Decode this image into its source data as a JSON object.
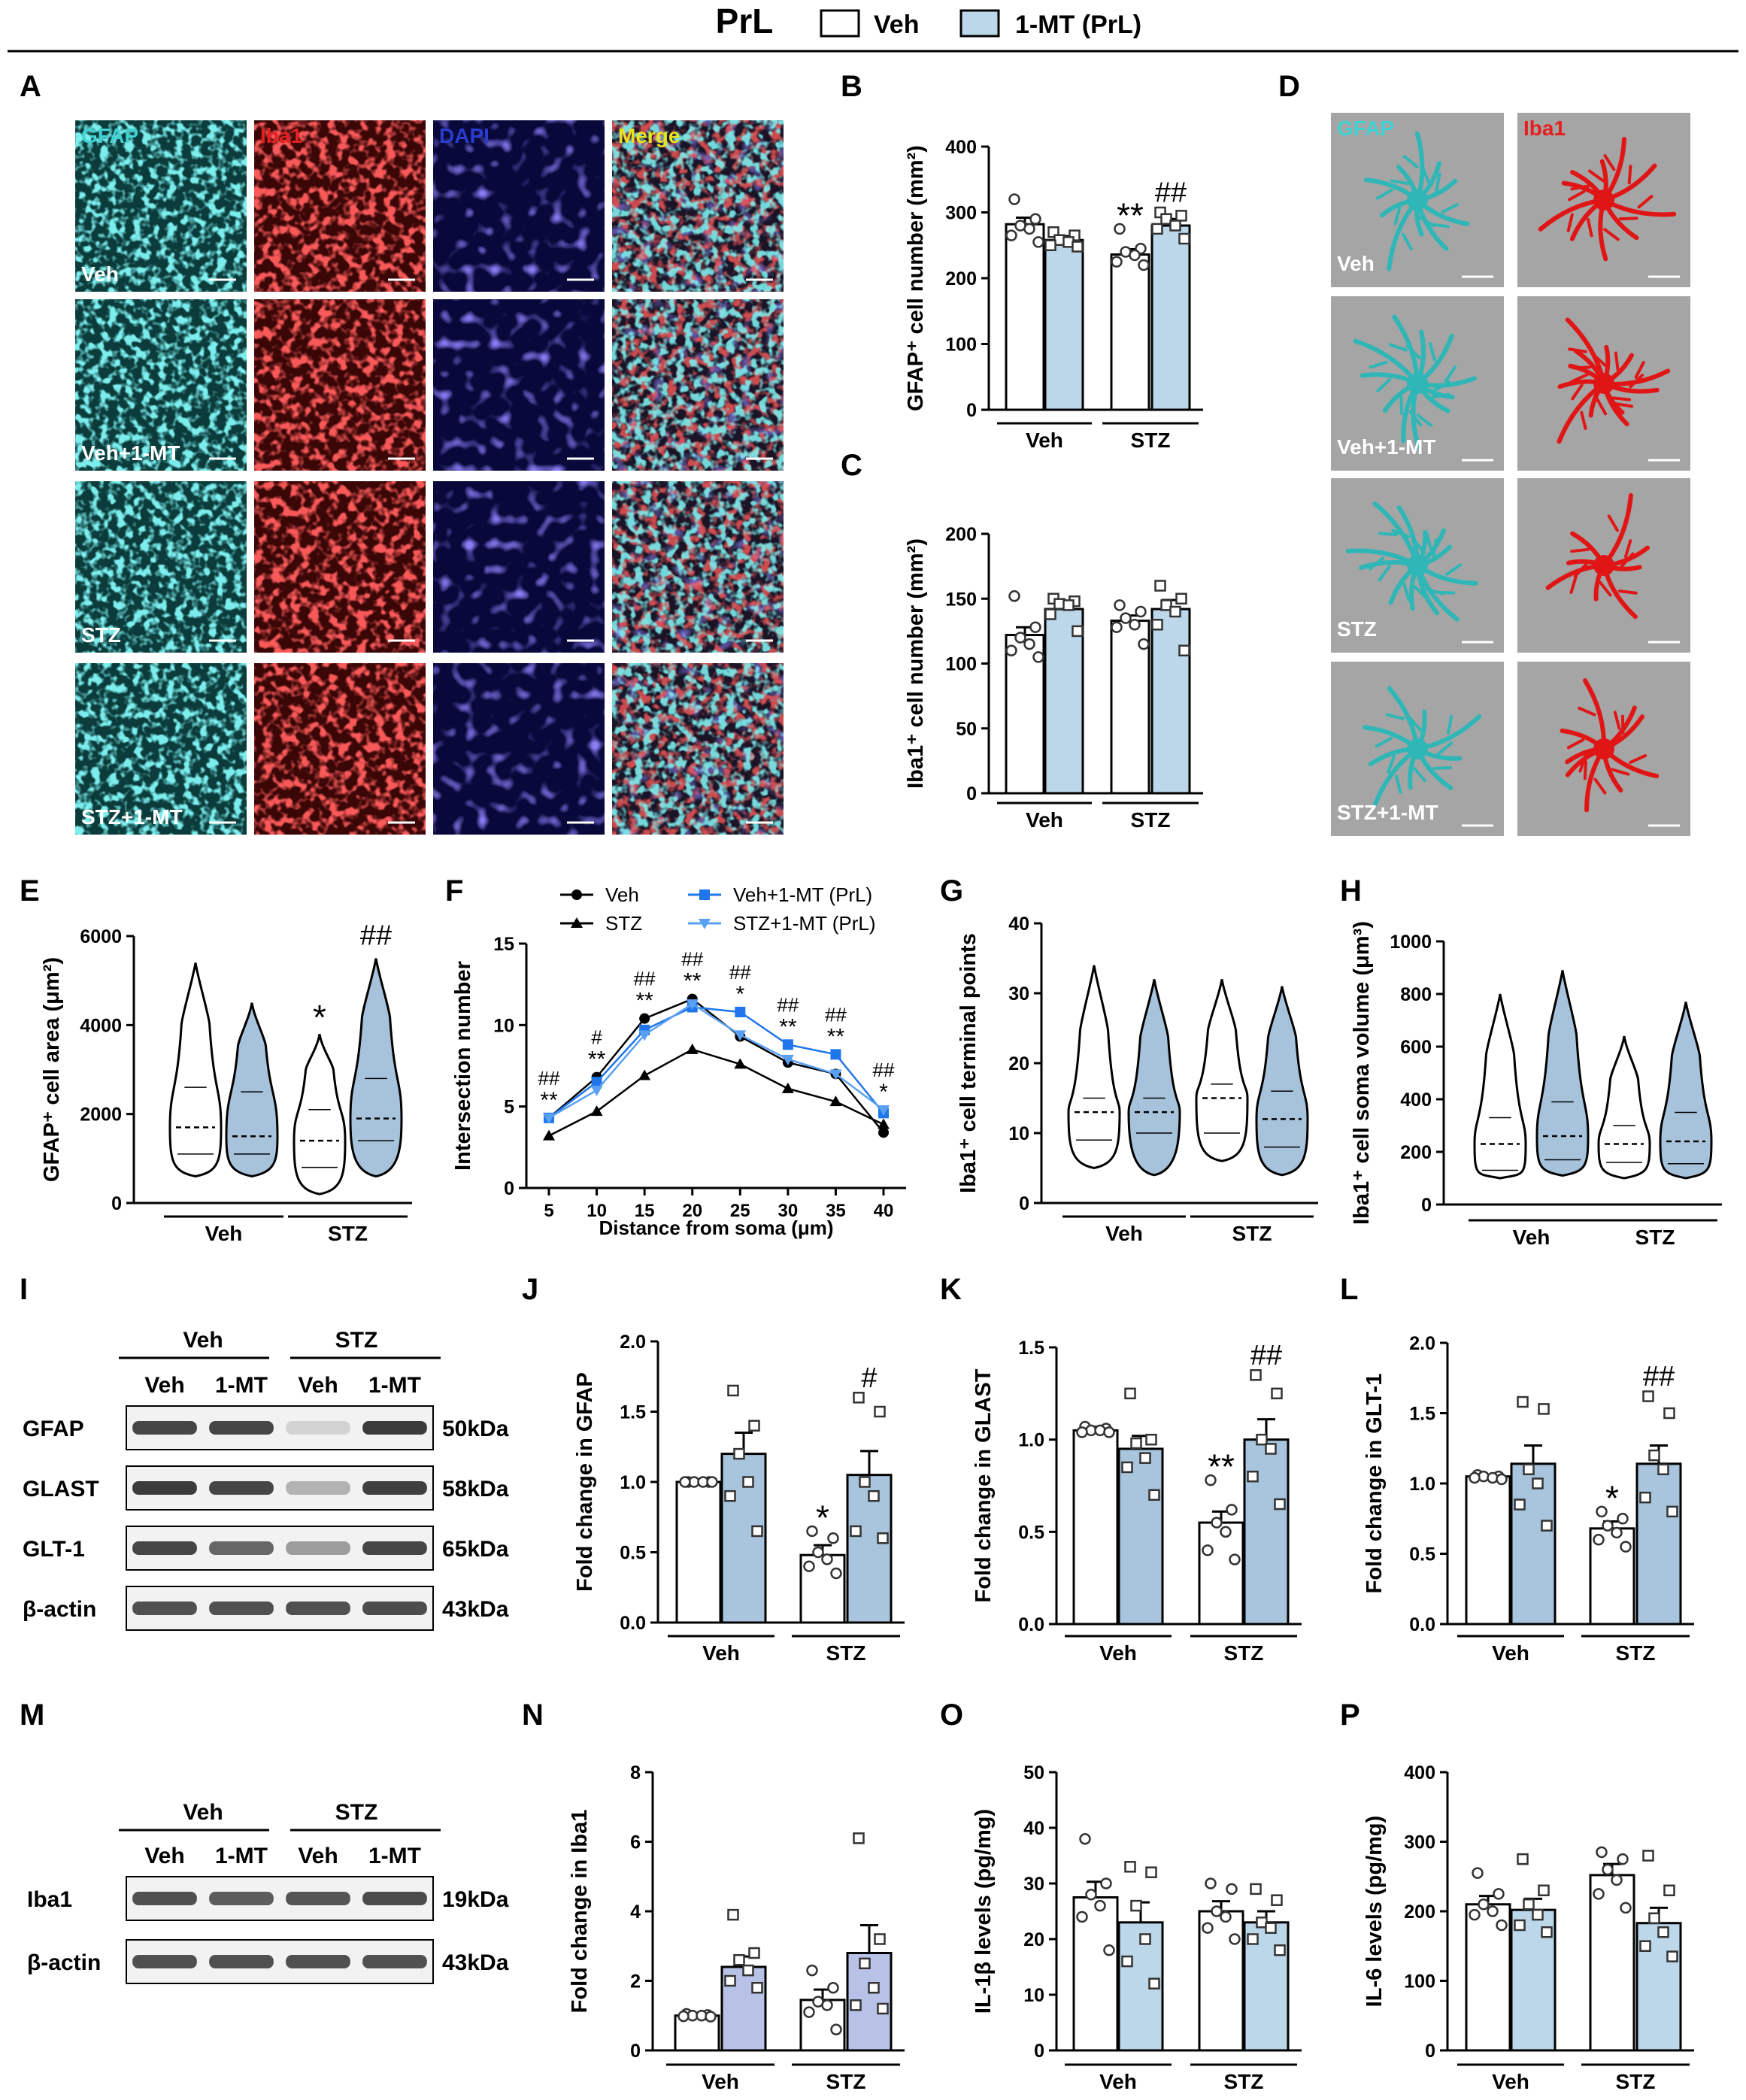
{
  "header": {
    "title": "PrL",
    "legend": [
      {
        "label": "Veh",
        "color": "#ffffff"
      },
      {
        "label": "1-MT (PrL)",
        "color": "#bcd7ea"
      }
    ]
  },
  "colors": {
    "veh_fill": "#ffffff",
    "mt_fill": "#bcd7ea",
    "mt_fill_dark": "#a9c5dd",
    "violin_fill": "#a7c2db",
    "iba_fill": "#b7c2e6",
    "cyan": "#3fd2d2",
    "red": "#e51f1f",
    "blue": "#1a2fb0",
    "series_blue": "#1f76ea"
  },
  "panel_letters": [
    "A",
    "B",
    "C",
    "D",
    "E",
    "F",
    "G",
    "H",
    "I",
    "J",
    "K",
    "L",
    "M",
    "N",
    "O",
    "P"
  ],
  "micrographs": {
    "columns": [
      "GFAP",
      "Iba1",
      "DAPI",
      "Merge"
    ],
    "rows": [
      "Veh",
      "Veh+1-MT",
      "STZ",
      "STZ+1-MT"
    ]
  },
  "cell_3d": {
    "columns": [
      "GFAP",
      "Iba1"
    ],
    "rows": [
      "Veh",
      "Veh+1-MT",
      "STZ",
      "STZ+1-MT"
    ]
  },
  "group_labels": [
    "Veh",
    "STZ"
  ],
  "chart_data": [
    {
      "id": "B",
      "type": "bar",
      "ylabel": "GFAP⁺ cell number (mm²)",
      "ylim": [
        0,
        400
      ],
      "yticks": [
        0,
        100,
        200,
        300,
        400
      ],
      "values": [
        282,
        258,
        236,
        280
      ],
      "errors": [
        10,
        6,
        8,
        10
      ],
      "points": [
        [
          320,
          290,
          280,
          275,
          265,
          255
        ],
        [
          270,
          265,
          258,
          255,
          250,
          248
        ],
        [
          275,
          245,
          240,
          235,
          225,
          220
        ],
        [
          300,
          295,
          290,
          280,
          275,
          260
        ]
      ],
      "sig": [
        {
          "bar": 2,
          "text": "**"
        },
        {
          "bar": 3,
          "text": "##"
        }
      ]
    },
    {
      "id": "C",
      "type": "bar",
      "ylabel": "Iba1⁺ cell number (mm²)",
      "ylim": [
        0,
        200
      ],
      "yticks": [
        0,
        50,
        100,
        150,
        200
      ],
      "values": [
        122,
        142,
        133,
        142
      ],
      "errors": [
        6,
        4,
        4,
        7
      ],
      "points": [
        [
          152,
          128,
          120,
          115,
          110,
          105
        ],
        [
          150,
          148,
          146,
          145,
          138,
          125
        ],
        [
          145,
          140,
          135,
          130,
          128,
          115
        ],
        [
          160,
          150,
          145,
          140,
          130,
          110
        ]
      ],
      "sig": []
    },
    {
      "id": "E",
      "type": "violin",
      "ylabel": "GFAP⁺ cell area (μm²)",
      "ylim": [
        0,
        6000
      ],
      "yticks": [
        0,
        2000,
        4000,
        6000
      ],
      "groups": [
        {
          "min": 600,
          "max": 5400,
          "q1": 1100,
          "med": 1700,
          "q3": 2600
        },
        {
          "min": 600,
          "max": 4500,
          "q1": 1100,
          "med": 1500,
          "q3": 2500
        },
        {
          "min": 200,
          "max": 3800,
          "q1": 800,
          "med": 1400,
          "q3": 2100
        },
        {
          "min": 600,
          "max": 5500,
          "q1": 1400,
          "med": 1900,
          "q3": 2800
        }
      ],
      "sig": [
        {
          "bar": 2,
          "text": "*"
        },
        {
          "bar": 3,
          "text": "##"
        }
      ]
    },
    {
      "id": "F",
      "type": "line",
      "xlabel": "Distance from soma (μm)",
      "ylabel": "Intersection number",
      "ylim": [
        0,
        15
      ],
      "yticks": [
        0,
        5,
        10,
        15
      ],
      "x": [
        5,
        10,
        15,
        20,
        25,
        30,
        35,
        40
      ],
      "series": [
        {
          "name": "Veh",
          "marker": "circle",
          "color": "#000000",
          "values": [
            4.3,
            6.8,
            10.4,
            11.6,
            9.3,
            7.7,
            7.0,
            3.4
          ]
        },
        {
          "name": "STZ",
          "marker": "triangle-up",
          "color": "#000000",
          "values": [
            3.2,
            4.7,
            6.9,
            8.5,
            7.6,
            6.1,
            5.3,
            3.9
          ]
        },
        {
          "name": "Veh+1-MT (PrL)",
          "marker": "square",
          "color": "#1f76ea",
          "values": [
            4.3,
            6.5,
            9.7,
            11.1,
            10.8,
            8.8,
            8.2,
            4.6
          ]
        },
        {
          "name": "STZ+1-MT (PrL)",
          "marker": "triangle-down",
          "color": "#5aa0f2",
          "values": [
            4.3,
            6.0,
            9.4,
            11.3,
            9.4,
            7.9,
            7.0,
            4.8
          ]
        }
      ],
      "sig": [
        {
          "x": 5,
          "top": "##",
          "bottom": "**"
        },
        {
          "x": 10,
          "top": "#",
          "bottom": "**"
        },
        {
          "x": 15,
          "top": "##",
          "bottom": "**"
        },
        {
          "x": 20,
          "top": "##",
          "bottom": "**"
        },
        {
          "x": 25,
          "top": "##",
          "bottom": "*"
        },
        {
          "x": 30,
          "top": "##",
          "bottom": "**"
        },
        {
          "x": 35,
          "top": "##",
          "bottom": "**"
        },
        {
          "x": 40,
          "top": "##",
          "bottom": "*"
        }
      ]
    },
    {
      "id": "G",
      "type": "violin",
      "ylabel": "Iba1⁺ cell terminal points",
      "ylim": [
        0,
        40
      ],
      "yticks": [
        0,
        10,
        20,
        30,
        40
      ],
      "groups": [
        {
          "min": 5,
          "max": 34,
          "q1": 9,
          "med": 13,
          "q3": 15
        },
        {
          "min": 4,
          "max": 32,
          "q1": 10,
          "med": 13,
          "q3": 15
        },
        {
          "min": 6,
          "max": 32,
          "q1": 10,
          "med": 15,
          "q3": 17
        },
        {
          "min": 4,
          "max": 31,
          "q1": 8,
          "med": 12,
          "q3": 16
        }
      ],
      "sig": []
    },
    {
      "id": "H",
      "type": "violin",
      "ylabel": "Iba1⁺ cell soma volume (μm³)",
      "ylim": [
        0,
        1000
      ],
      "yticks": [
        0,
        200,
        400,
        600,
        800,
        1000
      ],
      "groups": [
        {
          "min": 100,
          "max": 800,
          "q1": 130,
          "med": 230,
          "q3": 330
        },
        {
          "min": 110,
          "max": 890,
          "q1": 170,
          "med": 260,
          "q3": 390
        },
        {
          "min": 100,
          "max": 640,
          "q1": 160,
          "med": 230,
          "q3": 300
        },
        {
          "min": 100,
          "max": 770,
          "q1": 155,
          "med": 240,
          "q3": 350
        }
      ],
      "sig": []
    },
    {
      "id": "J",
      "type": "bar",
      "ylabel": "Fold change in GFAP",
      "ylim": [
        0,
        2
      ],
      "yticks": [
        "0.0",
        "0.5",
        "1.0",
        "1.5",
        "2.0"
      ],
      "values": [
        1.0,
        1.2,
        0.48,
        1.05
      ],
      "errors": [
        0.01,
        0.15,
        0.07,
        0.17
      ],
      "points": [
        [
          1.0,
          1.0,
          1.0,
          1.0,
          1.0,
          1.0
        ],
        [
          1.65,
          1.4,
          1.2,
          1.0,
          0.9,
          0.65
        ],
        [
          0.65,
          0.6,
          0.5,
          0.45,
          0.4,
          0.35
        ],
        [
          1.6,
          1.5,
          1.0,
          0.9,
          0.65,
          0.6
        ]
      ],
      "sig": [
        {
          "bar": 2,
          "text": "*"
        },
        {
          "bar": 3,
          "text": "#"
        }
      ]
    },
    {
      "id": "K",
      "type": "bar",
      "ylabel": "Fold change in GLAST",
      "ylim": [
        0,
        1.5
      ],
      "yticks": [
        "0.0",
        "0.5",
        "1.0",
        "1.5"
      ],
      "values": [
        1.05,
        0.95,
        0.55,
        1.0
      ],
      "errors": [
        0.02,
        0.07,
        0.06,
        0.11
      ],
      "points": [
        [
          1.07,
          1.06,
          1.05,
          1.05,
          1.04,
          1.04
        ],
        [
          1.25,
          1.0,
          0.98,
          0.9,
          0.85,
          0.7
        ],
        [
          0.78,
          0.62,
          0.55,
          0.5,
          0.4,
          0.35
        ],
        [
          1.35,
          1.25,
          1.0,
          0.95,
          0.8,
          0.65
        ]
      ],
      "sig": [
        {
          "bar": 2,
          "text": "**"
        },
        {
          "bar": 3,
          "text": "##"
        }
      ]
    },
    {
      "id": "L",
      "type": "bar",
      "ylabel": "Fold change in GLT-1",
      "ylim": [
        0,
        2
      ],
      "yticks": [
        "0.0",
        "0.5",
        "1.0",
        "1.5",
        "2.0"
      ],
      "values": [
        1.05,
        1.14,
        0.68,
        1.14
      ],
      "errors": [
        0.01,
        0.13,
        0.05,
        0.13
      ],
      "points": [
        [
          1.06,
          1.05,
          1.05,
          1.04,
          1.04,
          1.03
        ],
        [
          1.58,
          1.53,
          1.1,
          1.0,
          0.85,
          0.7
        ],
        [
          0.8,
          0.75,
          0.7,
          0.65,
          0.6,
          0.55
        ],
        [
          1.62,
          1.5,
          1.2,
          1.1,
          0.9,
          0.8
        ]
      ],
      "sig": [
        {
          "bar": 2,
          "text": "*"
        },
        {
          "bar": 3,
          "text": "##"
        }
      ]
    },
    {
      "id": "N",
      "type": "bar",
      "ylabel": "Fold change in Iba1",
      "ylim": [
        0,
        8
      ],
      "yticks": [
        0,
        2,
        4,
        6,
        8
      ],
      "values": [
        1.0,
        2.4,
        1.45,
        2.8
      ],
      "errors": [
        0.02,
        0.3,
        0.3,
        0.8
      ],
      "points": [
        [
          1.05,
          1.02,
          1.0,
          1.0,
          0.98,
          0.97
        ],
        [
          3.9,
          2.8,
          2.6,
          2.3,
          2.0,
          1.8
        ],
        [
          2.3,
          1.8,
          1.4,
          1.3,
          1.1,
          0.6
        ],
        [
          6.1,
          3.2,
          2.5,
          1.8,
          1.3,
          1.2
        ]
      ],
      "sig": []
    },
    {
      "id": "O",
      "type": "bar",
      "ylabel": "IL-1β levels (pg/mg)",
      "ylim": [
        0,
        50
      ],
      "yticks": [
        0,
        10,
        20,
        30,
        40,
        50
      ],
      "values": [
        27.5,
        23,
        25,
        23
      ],
      "errors": [
        2.8,
        3.6,
        1.8,
        2.0
      ],
      "points": [
        [
          38,
          30,
          28,
          26,
          24,
          18
        ],
        [
          33,
          32,
          26,
          20,
          16,
          12
        ],
        [
          30,
          29,
          25,
          24,
          22,
          20
        ],
        [
          29,
          27,
          23,
          22,
          20,
          18
        ]
      ],
      "sig": []
    },
    {
      "id": "P",
      "type": "bar",
      "ylabel": "IL-6 levels (pg/mg)",
      "ylim": [
        0,
        400
      ],
      "yticks": [
        0,
        100,
        200,
        300,
        400
      ],
      "values": [
        210,
        202,
        252,
        183
      ],
      "errors": [
        12,
        16,
        16,
        22
      ],
      "points": [
        [
          255,
          225,
          210,
          200,
          195,
          180
        ],
        [
          275,
          230,
          210,
          195,
          180,
          170
        ],
        [
          285,
          275,
          260,
          245,
          225,
          205
        ],
        [
          280,
          230,
          190,
          170,
          150,
          135
        ]
      ],
      "sig": []
    }
  ],
  "blots": [
    {
      "id": "I",
      "group_headers": [
        "Veh",
        "STZ"
      ],
      "lanes": [
        "Veh",
        "1-MT",
        "Veh",
        "1-MT"
      ],
      "rows": [
        {
          "label": "GFAP",
          "kda": "50kDa"
        },
        {
          "label": "GLAST",
          "kda": "58kDa"
        },
        {
          "label": "GLT-1",
          "kda": "65kDa"
        },
        {
          "label": "β-actin",
          "kda": "43kDa"
        }
      ]
    },
    {
      "id": "M",
      "group_headers": [
        "Veh",
        "STZ"
      ],
      "lanes": [
        "Veh",
        "1-MT",
        "Veh",
        "1-MT"
      ],
      "rows": [
        {
          "label": "Iba1",
          "kda": "19kDa"
        },
        {
          "label": "β-actin",
          "kda": "43kDa"
        }
      ]
    }
  ]
}
